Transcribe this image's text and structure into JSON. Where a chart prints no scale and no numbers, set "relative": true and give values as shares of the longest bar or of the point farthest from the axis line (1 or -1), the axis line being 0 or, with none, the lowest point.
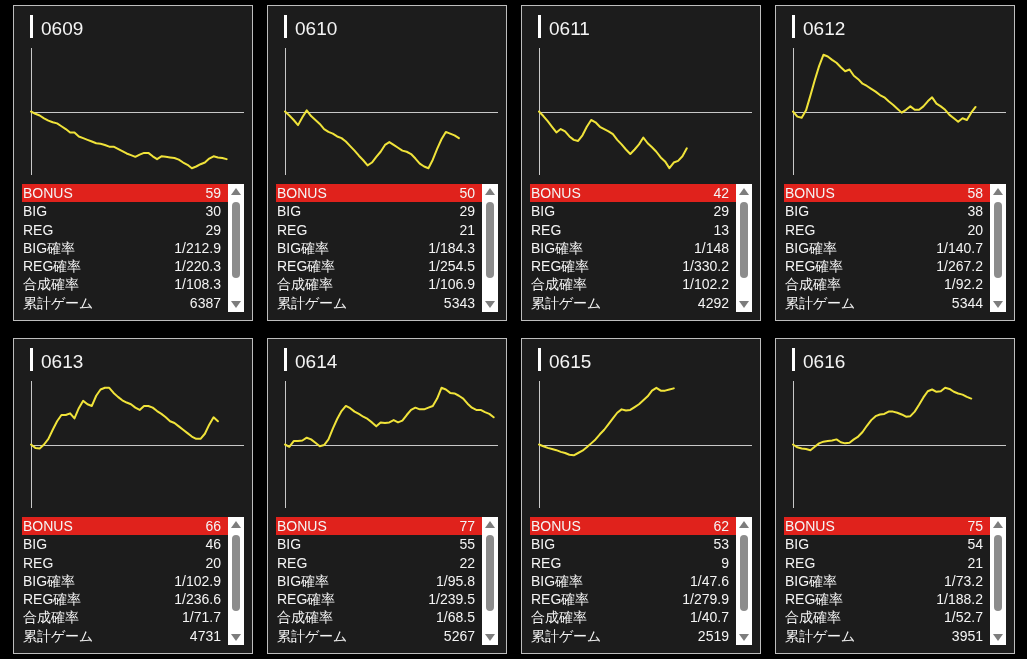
{
  "chart_data": [
    {
      "type": "line",
      "title": "0609",
      "relative": true,
      "categories": [
        null,
        null,
        null,
        null,
        null,
        null,
        null,
        null,
        null,
        null,
        null,
        null,
        null,
        null,
        null,
        null,
        null,
        null,
        null,
        null,
        null,
        null,
        null,
        null,
        null,
        null,
        null,
        null,
        null,
        null,
        null,
        null,
        null,
        null,
        null,
        null,
        null,
        null,
        null,
        null,
        null,
        null,
        null,
        null,
        null,
        null,
        null,
        null,
        null,
        null
      ],
      "series": [
        {
          "color": "#f0e33a",
          "values": [
            0,
            -0.04,
            -0.07,
            -0.12,
            -0.16,
            -0.19,
            -0.21,
            -0.26,
            -0.31,
            -0.37,
            -0.37,
            -0.44,
            -0.47,
            -0.5,
            -0.53,
            -0.56,
            -0.57,
            -0.59,
            -0.62,
            -0.62,
            -0.66,
            -0.7,
            -0.74,
            -0.77,
            -0.8,
            -0.76,
            -0.73,
            -0.73,
            -0.79,
            -0.84,
            -0.79,
            -0.8,
            -0.81,
            -0.82,
            -0.85,
            -0.9,
            -0.94,
            -1,
            -0.97,
            -0.93,
            -0.9,
            -0.83,
            -0.79,
            -0.81,
            -0.82,
            -0.84,
            null,
            null,
            null,
            null
          ]
        }
      ],
      "annotations": [
        "BONUS",
        "59",
        "BIG",
        "30",
        "REG",
        "29",
        "BIG確率",
        "1/212.9",
        "REG確率",
        "1/220.3",
        "合成確率",
        "1/108.3",
        "累計ゲーム",
        "6387"
      ]
    },
    {
      "type": "line",
      "title": "0610",
      "relative": true,
      "categories": [
        null,
        null,
        null,
        null,
        null,
        null,
        null,
        null,
        null,
        null,
        null,
        null,
        null,
        null,
        null,
        null,
        null,
        null,
        null,
        null,
        null,
        null,
        null,
        null,
        null,
        null,
        null,
        null,
        null,
        null,
        null,
        null,
        null,
        null,
        null,
        null,
        null,
        null,
        null,
        null,
        null,
        null,
        null,
        null,
        null,
        null,
        null,
        null,
        null,
        null
      ],
      "series": [
        {
          "color": "#f0e33a",
          "values": [
            0,
            -0.07,
            -0.15,
            -0.24,
            -0.1,
            0.02,
            -0.08,
            -0.15,
            -0.22,
            -0.31,
            -0.36,
            -0.39,
            -0.44,
            -0.47,
            -0.53,
            -0.61,
            -0.69,
            -0.78,
            -0.86,
            -0.95,
            -0.9,
            -0.8,
            -0.71,
            -0.59,
            -0.54,
            -0.59,
            -0.64,
            -0.69,
            -0.71,
            -0.75,
            -0.83,
            -0.92,
            -0.97,
            -1,
            -0.85,
            -0.66,
            -0.49,
            -0.36,
            -0.39,
            -0.42,
            -0.47,
            null,
            null,
            null,
            null,
            null,
            null,
            null,
            null,
            null
          ]
        }
      ],
      "annotations": [
        "BONUS",
        "50",
        "BIG",
        "29",
        "REG",
        "21",
        "BIG確率",
        "1/184.3",
        "REG確率",
        "1/254.5",
        "合成確率",
        "1/106.9",
        "累計ゲーム",
        "5343"
      ]
    },
    {
      "type": "line",
      "title": "0611",
      "relative": true,
      "categories": [
        null,
        null,
        null,
        null,
        null,
        null,
        null,
        null,
        null,
        null,
        null,
        null,
        null,
        null,
        null,
        null,
        null,
        null,
        null,
        null,
        null,
        null,
        null,
        null,
        null,
        null,
        null,
        null,
        null,
        null,
        null,
        null,
        null,
        null,
        null,
        null,
        null,
        null,
        null,
        null,
        null,
        null,
        null,
        null,
        null,
        null,
        null,
        null,
        null,
        null
      ],
      "series": [
        {
          "color": "#f0e33a",
          "values": [
            0,
            -0.08,
            -0.17,
            -0.27,
            -0.37,
            -0.31,
            -0.35,
            -0.44,
            -0.5,
            -0.52,
            -0.42,
            -0.27,
            -0.15,
            -0.19,
            -0.27,
            -0.31,
            -0.35,
            -0.4,
            -0.5,
            -0.58,
            -0.67,
            -0.75,
            -0.67,
            -0.58,
            -0.46,
            -0.56,
            -0.63,
            -0.71,
            -0.81,
            -0.88,
            -1,
            -0.9,
            -0.87,
            -0.79,
            -0.65,
            null,
            null,
            null,
            null,
            null,
            null,
            null,
            null,
            null,
            null,
            null,
            null,
            null,
            null,
            null
          ]
        }
      ],
      "annotations": [
        "BONUS",
        "42",
        "BIG",
        "29",
        "REG",
        "13",
        "BIG確率",
        "1/148",
        "REG確率",
        "1/330.2",
        "合成確率",
        "1/102.2",
        "累計ゲーム",
        "4292"
      ]
    },
    {
      "type": "line",
      "title": "0612",
      "relative": true,
      "categories": [
        null,
        null,
        null,
        null,
        null,
        null,
        null,
        null,
        null,
        null,
        null,
        null,
        null,
        null,
        null,
        null,
        null,
        null,
        null,
        null,
        null,
        null,
        null,
        null,
        null,
        null,
        null,
        null,
        null,
        null,
        null,
        null,
        null,
        null,
        null,
        null,
        null,
        null,
        null,
        null,
        null,
        null,
        null,
        null,
        null,
        null,
        null,
        null,
        null,
        null
      ],
      "series": [
        {
          "color": "#f0e33a",
          "values": [
            0,
            -0.09,
            -0.11,
            0.02,
            0.28,
            0.55,
            0.8,
            1,
            0.97,
            0.91,
            0.86,
            0.78,
            0.71,
            0.74,
            0.63,
            0.57,
            0.49,
            0.45,
            0.4,
            0.35,
            0.29,
            0.25,
            0.18,
            0.12,
            0.05,
            -0.02,
            0.03,
            0.09,
            0.03,
            0.03,
            0.09,
            0.18,
            0.25,
            0.14,
            0.09,
            0.03,
            -0.06,
            -0.12,
            -0.18,
            -0.12,
            -0.15,
            -0.02,
            0.08,
            null,
            null,
            null,
            null,
            null,
            null,
            null
          ]
        }
      ],
      "annotations": [
        "BONUS",
        "58",
        "BIG",
        "38",
        "REG",
        "20",
        "BIG確率",
        "1/140.7",
        "REG確率",
        "1/267.2",
        "合成確率",
        "1/92.2",
        "累計ゲーム",
        "5344"
      ]
    },
    {
      "type": "line",
      "title": "0613",
      "relative": true,
      "categories": [
        null,
        null,
        null,
        null,
        null,
        null,
        null,
        null,
        null,
        null,
        null,
        null,
        null,
        null,
        null,
        null,
        null,
        null,
        null,
        null,
        null,
        null,
        null,
        null,
        null,
        null,
        null,
        null,
        null,
        null,
        null,
        null,
        null,
        null,
        null,
        null,
        null,
        null,
        null,
        null,
        null,
        null,
        null,
        null,
        null,
        null,
        null,
        null,
        null,
        null
      ],
      "series": [
        {
          "color": "#f0e33a",
          "values": [
            0,
            -0.06,
            -0.07,
            0,
            0.1,
            0.26,
            0.41,
            0.52,
            0.52,
            0.55,
            0.46,
            0.64,
            0.77,
            0.71,
            0.68,
            0.86,
            0.97,
            1,
            1,
            0.91,
            0.84,
            0.78,
            0.74,
            0.71,
            0.65,
            0.61,
            0.68,
            0.68,
            0.65,
            0.59,
            0.54,
            0.48,
            0.41,
            0.38,
            0.32,
            0.26,
            0.2,
            0.14,
            0.1,
            0.1,
            0.19,
            0.35,
            0.48,
            0.41,
            null,
            null,
            null,
            null,
            null,
            null
          ]
        }
      ],
      "annotations": [
        "BONUS",
        "66",
        "BIG",
        "46",
        "REG",
        "20",
        "BIG確率",
        "1/102.9",
        "REG確率",
        "1/236.6",
        "合成確率",
        "1/71.7",
        "累計ゲーム",
        "4731"
      ]
    },
    {
      "type": "line",
      "title": "0614",
      "relative": true,
      "categories": [
        null,
        null,
        null,
        null,
        null,
        null,
        null,
        null,
        null,
        null,
        null,
        null,
        null,
        null,
        null,
        null,
        null,
        null,
        null,
        null,
        null,
        null,
        null,
        null,
        null,
        null,
        null,
        null,
        null,
        null,
        null,
        null,
        null,
        null,
        null,
        null,
        null,
        null,
        null,
        null,
        null,
        null,
        null,
        null,
        null,
        null,
        null,
        null,
        null,
        null
      ],
      "series": [
        {
          "color": "#f0e33a",
          "values": [
            0,
            -0.04,
            0.06,
            0.06,
            0.07,
            0.12,
            0.09,
            0.03,
            -0.03,
            -0.01,
            0.09,
            0.28,
            0.45,
            0.59,
            0.68,
            0.64,
            0.58,
            0.54,
            0.49,
            0.45,
            0.39,
            0.32,
            0.39,
            0.38,
            0.39,
            0.43,
            0.39,
            0.42,
            0.52,
            0.61,
            0.65,
            0.62,
            0.62,
            0.65,
            0.68,
            0.81,
            1,
            0.97,
            0.91,
            0.9,
            0.86,
            0.81,
            0.72,
            0.65,
            0.61,
            0.61,
            0.57,
            0.54,
            0.48,
            null
          ]
        }
      ],
      "annotations": [
        "BONUS",
        "77",
        "BIG",
        "55",
        "REG",
        "22",
        "BIG確率",
        "1/95.8",
        "REG確率",
        "1/239.5",
        "合成確率",
        "1/68.5",
        "累計ゲーム",
        "5267"
      ]
    },
    {
      "type": "line",
      "title": "0615",
      "relative": true,
      "categories": [
        null,
        null,
        null,
        null,
        null,
        null,
        null,
        null,
        null,
        null,
        null,
        null,
        null,
        null,
        null,
        null,
        null,
        null,
        null,
        null,
        null,
        null,
        null,
        null,
        null,
        null,
        null,
        null,
        null,
        null,
        null,
        null,
        null,
        null,
        null,
        null,
        null,
        null,
        null,
        null,
        null,
        null,
        null,
        null,
        null,
        null,
        null,
        null,
        null,
        null
      ],
      "series": [
        {
          "color": "#f0e33a",
          "values": [
            0,
            -0.03,
            -0.06,
            -0.08,
            -0.1,
            -0.13,
            -0.15,
            -0.18,
            -0.19,
            -0.15,
            -0.11,
            -0.05,
            0.02,
            0.09,
            0.18,
            0.26,
            0.36,
            0.46,
            0.56,
            0.62,
            0.6,
            0.61,
            0.66,
            0.71,
            0.78,
            0.85,
            0.95,
            1,
            0.95,
            0.95,
            0.97,
            0.99,
            null,
            null,
            null,
            null,
            null,
            null,
            null,
            null,
            null,
            null,
            null,
            null,
            null,
            null,
            null,
            null,
            null,
            null
          ]
        }
      ],
      "annotations": [
        "BONUS",
        "62",
        "BIG",
        "53",
        "REG",
        "9",
        "BIG確率",
        "1/47.6",
        "REG確率",
        "1/279.9",
        "合成確率",
        "1/40.7",
        "累計ゲーム",
        "2519"
      ]
    },
    {
      "type": "line",
      "title": "0616",
      "relative": true,
      "categories": [
        null,
        null,
        null,
        null,
        null,
        null,
        null,
        null,
        null,
        null,
        null,
        null,
        null,
        null,
        null,
        null,
        null,
        null,
        null,
        null,
        null,
        null,
        null,
        null,
        null,
        null,
        null,
        null,
        null,
        null,
        null,
        null,
        null,
        null,
        null,
        null,
        null,
        null,
        null,
        null,
        null,
        null,
        null,
        null,
        null,
        null,
        null,
        null,
        null,
        null
      ],
      "series": [
        {
          "color": "#f0e33a",
          "values": [
            0,
            -0.05,
            -0.07,
            -0.08,
            -0.1,
            -0.04,
            0.02,
            0.05,
            0.06,
            0.07,
            0.09,
            0.04,
            0.02,
            0.03,
            0.09,
            0.14,
            0.22,
            0.33,
            0.43,
            0.5,
            0.53,
            0.54,
            0.58,
            0.58,
            0.56,
            0.53,
            0.49,
            0.5,
            0.58,
            0.7,
            0.83,
            0.94,
            0.97,
            0.93,
            0.94,
            1,
            0.98,
            0.93,
            0.9,
            0.88,
            0.84,
            0.81,
            null,
            null,
            null,
            null,
            null,
            null,
            null,
            null
          ]
        }
      ],
      "annotations": [
        "BONUS",
        "75",
        "BIG",
        "54",
        "REG",
        "21",
        "BIG確率",
        "1/73.2",
        "REG確率",
        "1/188.2",
        "合成確率",
        "1/52.7",
        "累計ゲーム",
        "3951"
      ]
    }
  ]
}
